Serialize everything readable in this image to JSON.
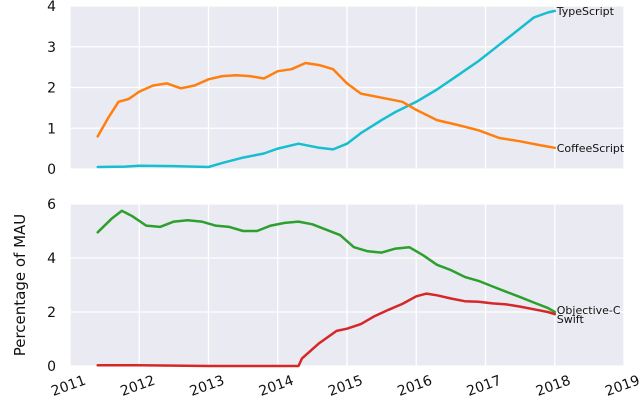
{
  "chart_data": [
    {
      "type": "line",
      "panel": "top",
      "xlim": [
        2011,
        2019
      ],
      "ylim": [
        0,
        4
      ],
      "yticks": [
        "0",
        "1",
        "2",
        "3",
        "4"
      ],
      "grid": true,
      "legend": "none",
      "series": [
        {
          "name": "TypeScript",
          "color": "#17becf",
          "points": [
            [
              2011.4,
              0.05
            ],
            [
              2011.8,
              0.06
            ],
            [
              2012.0,
              0.08
            ],
            [
              2012.5,
              0.07
            ],
            [
              2013.0,
              0.05
            ],
            [
              2013.2,
              0.15
            ],
            [
              2013.5,
              0.28
            ],
            [
              2013.8,
              0.38
            ],
            [
              2014.0,
              0.5
            ],
            [
              2014.3,
              0.62
            ],
            [
              2014.6,
              0.52
            ],
            [
              2014.8,
              0.48
            ],
            [
              2015.0,
              0.62
            ],
            [
              2015.2,
              0.88
            ],
            [
              2015.5,
              1.2
            ],
            [
              2015.7,
              1.4
            ],
            [
              2016.0,
              1.65
            ],
            [
              2016.3,
              1.95
            ],
            [
              2016.6,
              2.3
            ],
            [
              2016.9,
              2.65
            ],
            [
              2017.2,
              3.05
            ],
            [
              2017.5,
              3.45
            ],
            [
              2017.7,
              3.72
            ],
            [
              2017.9,
              3.84
            ],
            [
              2018.0,
              3.88
            ]
          ]
        },
        {
          "name": "CoffeeScript",
          "color": "#ff7f0e",
          "points": [
            [
              2011.4,
              0.8
            ],
            [
              2011.55,
              1.25
            ],
            [
              2011.7,
              1.65
            ],
            [
              2011.85,
              1.72
            ],
            [
              2012.0,
              1.9
            ],
            [
              2012.2,
              2.05
            ],
            [
              2012.4,
              2.1
            ],
            [
              2012.6,
              1.98
            ],
            [
              2012.8,
              2.05
            ],
            [
              2013.0,
              2.2
            ],
            [
              2013.2,
              2.28
            ],
            [
              2013.4,
              2.3
            ],
            [
              2013.6,
              2.28
            ],
            [
              2013.8,
              2.22
            ],
            [
              2014.0,
              2.4
            ],
            [
              2014.2,
              2.45
            ],
            [
              2014.4,
              2.6
            ],
            [
              2014.6,
              2.55
            ],
            [
              2014.8,
              2.45
            ],
            [
              2015.0,
              2.1
            ],
            [
              2015.2,
              1.85
            ],
            [
              2015.5,
              1.75
            ],
            [
              2015.8,
              1.65
            ],
            [
              2016.0,
              1.45
            ],
            [
              2016.3,
              1.2
            ],
            [
              2016.6,
              1.08
            ],
            [
              2016.9,
              0.95
            ],
            [
              2017.2,
              0.76
            ],
            [
              2017.5,
              0.68
            ],
            [
              2017.8,
              0.58
            ],
            [
              2018.0,
              0.52
            ]
          ]
        }
      ]
    },
    {
      "type": "line",
      "panel": "bottom",
      "xlim": [
        2011,
        2019
      ],
      "ylim": [
        0,
        6
      ],
      "yticks": [
        "0",
        "2",
        "4",
        "6"
      ],
      "ylabel": "Percentage of MAU",
      "xticks": [
        "2011",
        "2012",
        "2013",
        "2014",
        "2015",
        "2016",
        "2017",
        "2018",
        "2019"
      ],
      "grid": true,
      "legend": "none",
      "series": [
        {
          "name": "Objective-C",
          "color": "#2ca02c",
          "points": [
            [
              2011.4,
              4.95
            ],
            [
              2011.6,
              5.45
            ],
            [
              2011.75,
              5.75
            ],
            [
              2011.9,
              5.55
            ],
            [
              2012.1,
              5.2
            ],
            [
              2012.3,
              5.15
            ],
            [
              2012.5,
              5.35
            ],
            [
              2012.7,
              5.4
            ],
            [
              2012.9,
              5.35
            ],
            [
              2013.1,
              5.2
            ],
            [
              2013.3,
              5.15
            ],
            [
              2013.5,
              5.0
            ],
            [
              2013.7,
              5.0
            ],
            [
              2013.9,
              5.2
            ],
            [
              2014.1,
              5.3
            ],
            [
              2014.3,
              5.35
            ],
            [
              2014.5,
              5.25
            ],
            [
              2014.7,
              5.05
            ],
            [
              2014.9,
              4.85
            ],
            [
              2015.1,
              4.4
            ],
            [
              2015.3,
              4.25
            ],
            [
              2015.5,
              4.2
            ],
            [
              2015.7,
              4.35
            ],
            [
              2015.9,
              4.4
            ],
            [
              2016.1,
              4.1
            ],
            [
              2016.3,
              3.75
            ],
            [
              2016.5,
              3.55
            ],
            [
              2016.7,
              3.3
            ],
            [
              2016.9,
              3.15
            ],
            [
              2017.1,
              2.95
            ],
            [
              2017.3,
              2.75
            ],
            [
              2017.5,
              2.55
            ],
            [
              2017.7,
              2.35
            ],
            [
              2017.9,
              2.15
            ],
            [
              2018.0,
              2.0
            ]
          ]
        },
        {
          "name": "Swift",
          "color": "#d62728",
          "points": [
            [
              2011.4,
              0.03
            ],
            [
              2012.0,
              0.03
            ],
            [
              2013.0,
              0.0
            ],
            [
              2014.1,
              0.0
            ],
            [
              2014.3,
              0.0
            ],
            [
              2014.35,
              0.28
            ],
            [
              2014.6,
              0.85
            ],
            [
              2014.85,
              1.3
            ],
            [
              2015.0,
              1.38
            ],
            [
              2015.2,
              1.55
            ],
            [
              2015.4,
              1.85
            ],
            [
              2015.6,
              2.08
            ],
            [
              2015.8,
              2.3
            ],
            [
              2016.0,
              2.58
            ],
            [
              2016.15,
              2.68
            ],
            [
              2016.3,
              2.62
            ],
            [
              2016.5,
              2.5
            ],
            [
              2016.7,
              2.4
            ],
            [
              2016.9,
              2.38
            ],
            [
              2017.1,
              2.32
            ],
            [
              2017.3,
              2.28
            ],
            [
              2017.5,
              2.2
            ],
            [
              2017.7,
              2.1
            ],
            [
              2017.9,
              2.0
            ],
            [
              2018.0,
              1.92
            ]
          ]
        }
      ]
    }
  ]
}
